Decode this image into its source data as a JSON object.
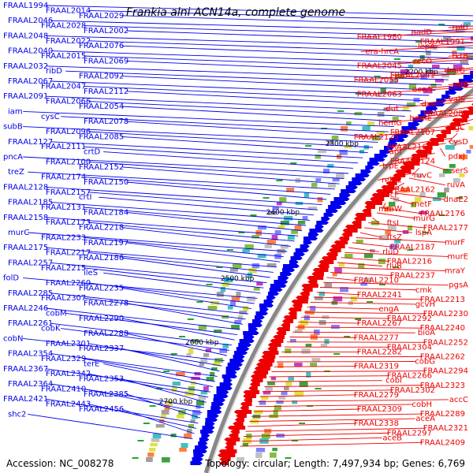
{
  "title": "Frankia alni ACN14a, complete genome",
  "footer": {
    "accession": "Accession: NC_008278",
    "summary": "Topology: circular; Length: 7,497,934 bp; Genes: 6,769"
  },
  "colors": {
    "reverse_strand": "#0000ee",
    "forward_strand": "#ee0000",
    "backbone": "#888888",
    "tick_marks": "#22aa22"
  },
  "kbp_ticks": [
    "2200 kbp",
    "2300 kbp",
    "2400 kbp",
    "2500 kbp",
    "2600 kbp",
    "2700 kbp"
  ],
  "left_labels": [
    "FRAAL1994",
    "FRAAL2014",
    "FRAAL2029",
    "FRAAL2046",
    "FRAAL2028",
    "FRAAL2002",
    "FRAAL2048",
    "FRAAL2022",
    "FRAAL2076",
    "FRAAL2040",
    "FRAAL2015",
    "FRAAL2069",
    "FRAAL2032",
    "ribD",
    "FRAAL2092",
    "FRAAL2067",
    "FRAAL2047",
    "FRAAL2112",
    "FRAAL2091",
    "FRAAL2066",
    "FRAAL2054",
    "iam",
    "cysC",
    "FRAAL2078",
    "subB",
    "FRAAL2096",
    "FRAAL2085",
    "FRAAL2127",
    "FRAAL2111",
    "crtD",
    "pncA",
    "FRAAL2100",
    "FRAAL2152",
    "treZ",
    "FRAAL2174",
    "FRAAL2150",
    "FRAAL2128",
    "FRAAL2157",
    "crtI",
    "FRAAL2185",
    "FRAAL2131",
    "FRAAL2184",
    "FRAAL2158",
    "FRAAL2173",
    "FRAAL2218",
    "murC",
    "FRAAL2233",
    "FRAAL2197",
    "FRAAL2175",
    "FRAAL2217",
    "FRAAL2186",
    "FRAAL2257",
    "FRAAL2215",
    "ileS",
    "folD",
    "FRAAL2260",
    "FRAAL2235",
    "FRAAL2285",
    "FRAAL2307",
    "FRAAL2278",
    "FRAAL2246",
    "cobM",
    "FRAAL2290",
    "FRAAL2261",
    "cobK",
    "FRAAL2288",
    "cobN",
    "FRAAL2301",
    "FRAAL2337",
    "FRAAL2354",
    "FRAAL2329",
    "terE",
    "FRAAL2367",
    "FRAAL2342",
    "FRAAL2353",
    "FRAAL2364",
    "FRAAL2410",
    "FRAAL2385",
    "FRAAL2421",
    "FRAAL2443",
    "FRAAL2456",
    "shc2"
  ],
  "right_labels": [
    "rplU",
    "nadD",
    "FRAAL1980",
    "FRAAL1991",
    "lepA",
    "era-hrcA",
    "tktB",
    "recO",
    "FRAAL2045",
    "dnaG",
    "FRAAL2041",
    "FRAAL2055",
    "rffE",
    "acnA",
    "FRAAL2063",
    "valS",
    "dxs",
    "dut",
    "FRAAL2089",
    "hemE",
    "hemG",
    "ligC",
    "FRAAL2107",
    "FRAAL2125",
    "cysD",
    "FRAAL2167",
    "apt",
    "pdxJ",
    "FRAAL2124",
    "trpE",
    "serS",
    "ruvC",
    "relA2",
    "ruvA",
    "FRAAL2162",
    "secF",
    "dnaE2",
    "metF",
    "mraW",
    "FRAAL2176",
    "murG",
    "ftsI",
    "FRAAL2177",
    "lspA",
    "ftsZ",
    "murF",
    "FRAAL2187",
    "rluD",
    "murE",
    "FRAAL2216",
    "rluB",
    "mraY",
    "FRAAL2237",
    "FRAAL2210",
    "pgsA",
    "cmk",
    "FRAAL2241",
    "FRAAL2213",
    "gcvH",
    "engA",
    "FRAAL2230",
    "FRAAL2292",
    "FRAAL2267",
    "FRAAL2240",
    "bioA",
    "FRAAL2277",
    "FRAAL2252",
    "FRAAL2304",
    "FRAAL2282",
    "FRAAL2262",
    "cobG",
    "FRAAL2319",
    "FRAAL2294",
    "FRAAL2266",
    "cobI",
    "FRAAL2323",
    "FRAAL2302",
    "FRAAL2279",
    "accC",
    "cobH",
    "FRAAL2309",
    "FRAAL2289",
    "aceA",
    "FRAAL2338",
    "FRAAL2321",
    "FRAAL2297",
    "aceB",
    "FRAAL2409"
  ]
}
